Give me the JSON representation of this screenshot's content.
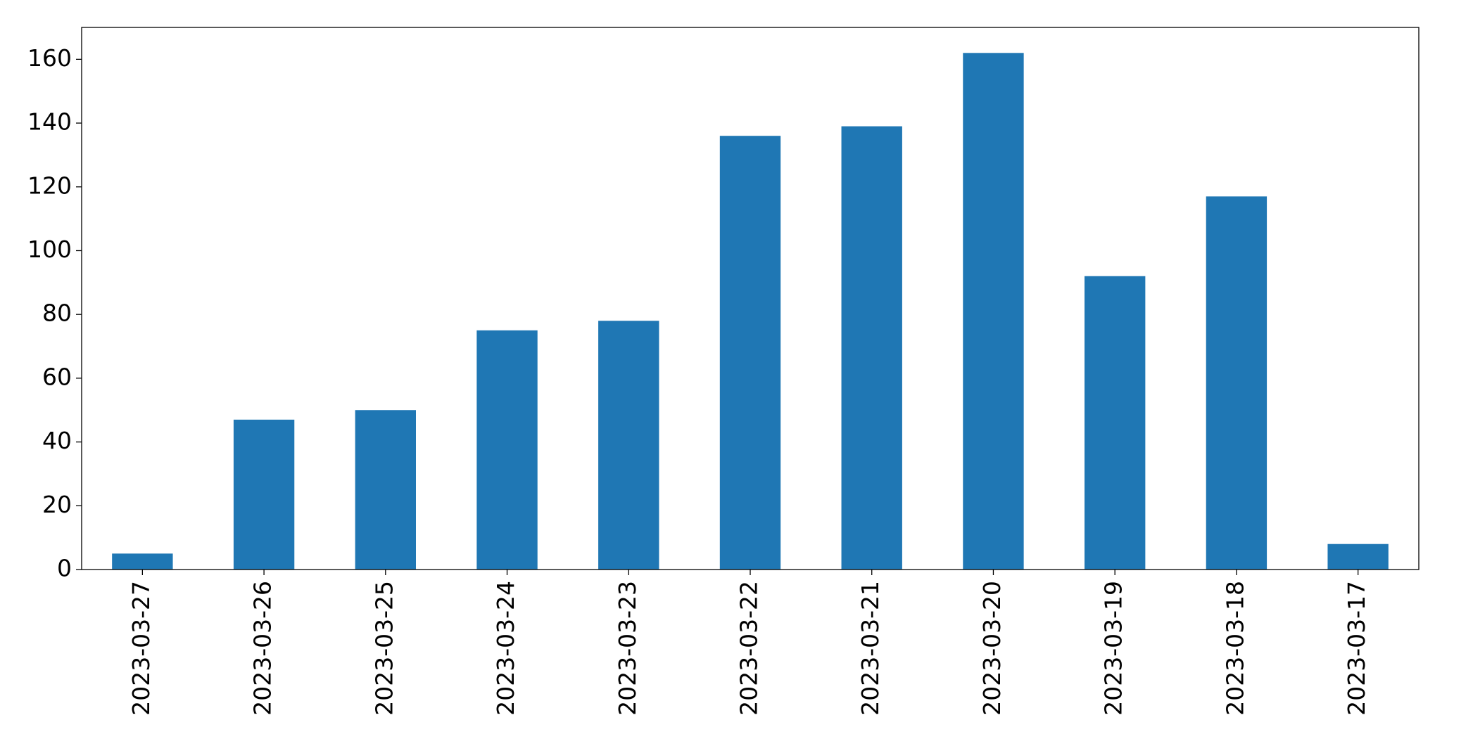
{
  "chart_data": {
    "type": "bar",
    "title": "",
    "xlabel": "",
    "ylabel": "",
    "categories": [
      "2023-03-27",
      "2023-03-26",
      "2023-03-25",
      "2023-03-24",
      "2023-03-23",
      "2023-03-22",
      "2023-03-21",
      "2023-03-20",
      "2023-03-19",
      "2023-03-18",
      "2023-03-17"
    ],
    "values": [
      5,
      47,
      50,
      75,
      78,
      136,
      139,
      162,
      92,
      117,
      8
    ],
    "ylim": [
      0,
      170
    ],
    "yticks": [
      0,
      20,
      40,
      60,
      80,
      100,
      120,
      140,
      160
    ],
    "bar_color": "#1f77b4",
    "grid": false,
    "legend": "none"
  }
}
